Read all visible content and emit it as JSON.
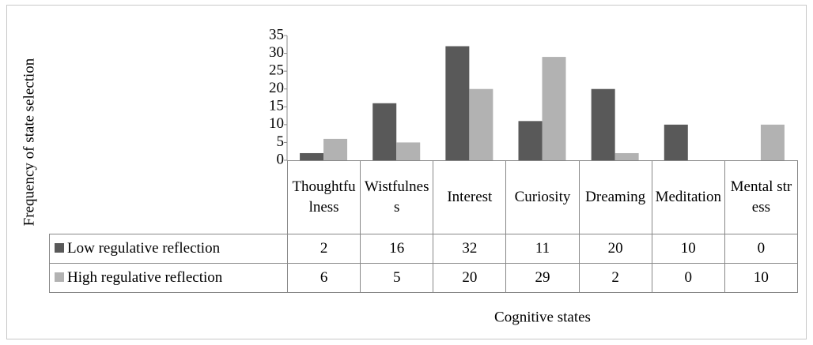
{
  "chart_data": {
    "type": "bar",
    "y_label": "Frequency of state selection",
    "x_label": "Cognitive states",
    "categories": [
      "Thoughtfulness",
      "Wistfulness",
      "Interest",
      "Curiosity",
      "Dreaming",
      "Meditation",
      "Mental stress"
    ],
    "series": [
      {
        "name": "Low regulative reflection",
        "color": "#595959",
        "values": [
          2,
          16,
          32,
          11,
          20,
          10,
          0
        ]
      },
      {
        "name": "High regulative reflection",
        "color": "#b2b2b2",
        "values": [
          6,
          5,
          20,
          29,
          2,
          0,
          10
        ]
      }
    ],
    "ylim": [
      0,
      35
    ],
    "yticks": [
      0,
      5,
      10,
      15,
      20,
      25,
      30,
      35
    ],
    "grid": false
  }
}
